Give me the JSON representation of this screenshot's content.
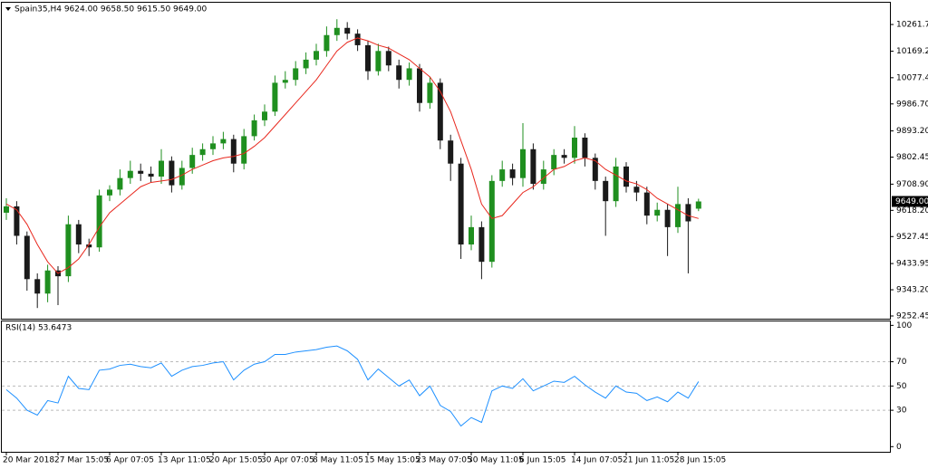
{
  "chart_data": [
    {
      "type": "candlestick",
      "title": "Spain35,H4  9624.00 9658.50 9615.50 9649.00",
      "categories": [
        "20 Mar 2018",
        null,
        null,
        null,
        null,
        "27 Mar 15:05",
        null,
        null,
        null,
        null,
        "6 Apr 07:05",
        null,
        null,
        null,
        null,
        "13 Apr 11:05",
        null,
        null,
        null,
        null,
        "20 Apr 15:05",
        null,
        null,
        null,
        null,
        "30 Apr 07:05",
        null,
        null,
        null,
        null,
        "8 May 11:05",
        null,
        null,
        null,
        null,
        "15 May 15:05",
        null,
        null,
        null,
        null,
        "23 May 07:05",
        null,
        null,
        null,
        null,
        "30 May 11:05",
        null,
        null,
        null,
        null,
        "6 Jun 15:05",
        null,
        null,
        null,
        null,
        "14 Jun 07:05",
        null,
        null,
        null,
        null,
        "21 Jun 11:05",
        null,
        null,
        null,
        null,
        "28 Jun 15:05",
        null,
        null
      ],
      "open": [
        9610,
        9632,
        9530,
        9380,
        9330,
        9410,
        9390,
        9570,
        9500,
        9490,
        9670,
        9690,
        9730,
        9755,
        9745,
        9735,
        9790,
        9705,
        9765,
        9810,
        9830,
        9850,
        9865,
        9780,
        9875,
        9930,
        9960,
        10060,
        10070,
        10110,
        10140,
        10170,
        10225,
        10250,
        10230,
        10190,
        10100,
        10170,
        10120,
        10070,
        10110,
        9990,
        10060,
        9860,
        9780,
        9500,
        9560,
        9440,
        9720,
        9760,
        9730,
        9830,
        9710,
        9760,
        9810,
        9800,
        9870,
        9800,
        9720,
        9650,
        9770,
        9700,
        9680,
        9600,
        9620,
        9560,
        9640,
        9624
      ],
      "high": [
        9660,
        9650,
        9545,
        9400,
        9430,
        9425,
        9600,
        9585,
        9520,
        9690,
        9705,
        9760,
        9790,
        9780,
        9770,
        9830,
        9805,
        9790,
        9835,
        9850,
        9875,
        9890,
        9880,
        9900,
        9950,
        9985,
        10085,
        10100,
        10135,
        10165,
        10195,
        10255,
        10280,
        10270,
        10245,
        10205,
        10195,
        10185,
        10140,
        10130,
        10125,
        10080,
        10075,
        9880,
        9800,
        9600,
        9580,
        9740,
        9790,
        9780,
        9920,
        9850,
        9790,
        9830,
        9830,
        9910,
        9885,
        9815,
        9735,
        9800,
        9785,
        9720,
        9700,
        9645,
        9640,
        9700,
        9660,
        9658.5
      ],
      "low": [
        9585,
        9500,
        9340,
        9280,
        9300,
        9290,
        9370,
        9470,
        9460,
        9475,
        9650,
        9670,
        9710,
        9720,
        9715,
        9710,
        9680,
        9690,
        9745,
        9790,
        9810,
        9830,
        9750,
        9760,
        9860,
        9910,
        9945,
        10040,
        10050,
        10090,
        10120,
        10150,
        10205,
        10210,
        10170,
        10070,
        10085,
        10100,
        10040,
        10050,
        9960,
        9970,
        9830,
        9720,
        9450,
        9480,
        9380,
        9420,
        9700,
        9705,
        9700,
        9690,
        9690,
        9740,
        9780,
        9780,
        9770,
        9690,
        9530,
        9630,
        9680,
        9650,
        9570,
        9580,
        9460,
        9540,
        9400,
        9615.5
      ],
      "close": [
        9632,
        9530,
        9380,
        9330,
        9410,
        9390,
        9570,
        9500,
        9490,
        9670,
        9690,
        9730,
        9755,
        9745,
        9735,
        9790,
        9705,
        9765,
        9810,
        9830,
        9850,
        9865,
        9780,
        9875,
        9930,
        9960,
        10060,
        10070,
        10110,
        10140,
        10170,
        10225,
        10250,
        10230,
        10190,
        10100,
        10170,
        10120,
        10070,
        10110,
        9990,
        10060,
        9860,
        9780,
        9500,
        9560,
        9440,
        9720,
        9760,
        9730,
        9830,
        9710,
        9760,
        9810,
        9800,
        9870,
        9800,
        9720,
        9650,
        9770,
        9700,
        9680,
        9600,
        9620,
        9560,
        9640,
        9580,
        9649
      ],
      "up_color": "#1f8f1f",
      "down_color": "#1a1a1a",
      "series": [
        {
          "color": "#e8281e",
          "values": [
            9640,
            9620,
            9570,
            9500,
            9440,
            9400,
            9420,
            9450,
            9500,
            9560,
            9610,
            9640,
            9670,
            9700,
            9715,
            9720,
            9725,
            9740,
            9760,
            9775,
            9790,
            9800,
            9805,
            9815,
            9840,
            9870,
            9910,
            9950,
            9990,
            10030,
            10070,
            10120,
            10170,
            10200,
            10215,
            10205,
            10190,
            10180,
            10160,
            10140,
            10110,
            10080,
            10030,
            9960,
            9860,
            9760,
            9640,
            9590,
            9600,
            9640,
            9680,
            9700,
            9730,
            9760,
            9770,
            9790,
            9800,
            9790,
            9760,
            9740,
            9720,
            9710,
            9690,
            9660,
            9640,
            9620,
            9600,
            9590
          ]
        }
      ],
      "ylim": [
        9243,
        10334
      ],
      "yticks": [
        {
          "value": 10261.7,
          "label": "10261.70"
        },
        {
          "value": 10169.2,
          "label": "10169.20"
        },
        10077.45,
        {
          "value": 9986.7,
          "label": "9986.70"
        },
        {
          "value": 9893.2,
          "label": "9893.20"
        },
        9802.45,
        {
          "value": 9708.9,
          "label": "9708.90"
        },
        {
          "value": 9618.2,
          "label": "9618.20"
        },
        9527.45,
        9433.95,
        {
          "value": 9343.2,
          "label": "9343.20"
        },
        9252.45
      ],
      "last_price": {
        "value": 9649,
        "label": "9649.00"
      }
    },
    {
      "type": "line",
      "title": "RSI(14) 53.6473",
      "series": [
        {
          "color": "#1e90ff",
          "values": [
            47,
            40,
            30,
            26,
            38,
            36,
            58,
            48,
            47,
            63,
            64,
            67,
            68,
            66,
            65,
            69,
            58,
            63,
            66,
            67,
            69,
            70,
            55,
            63,
            68,
            70,
            76,
            76,
            78,
            79,
            80,
            82,
            83,
            79,
            72,
            55,
            64,
            57,
            50,
            55,
            42,
            50,
            34,
            29,
            17,
            24,
            20,
            46,
            50,
            48,
            56,
            46,
            50,
            54,
            53,
            58,
            51,
            45,
            40,
            50,
            45,
            44,
            38,
            41,
            37,
            45,
            40,
            53.6473
          ]
        }
      ],
      "ylim": [
        -5,
        104
      ],
      "yticks": [
        100,
        70,
        50,
        30,
        0
      ],
      "grid": true
    }
  ]
}
